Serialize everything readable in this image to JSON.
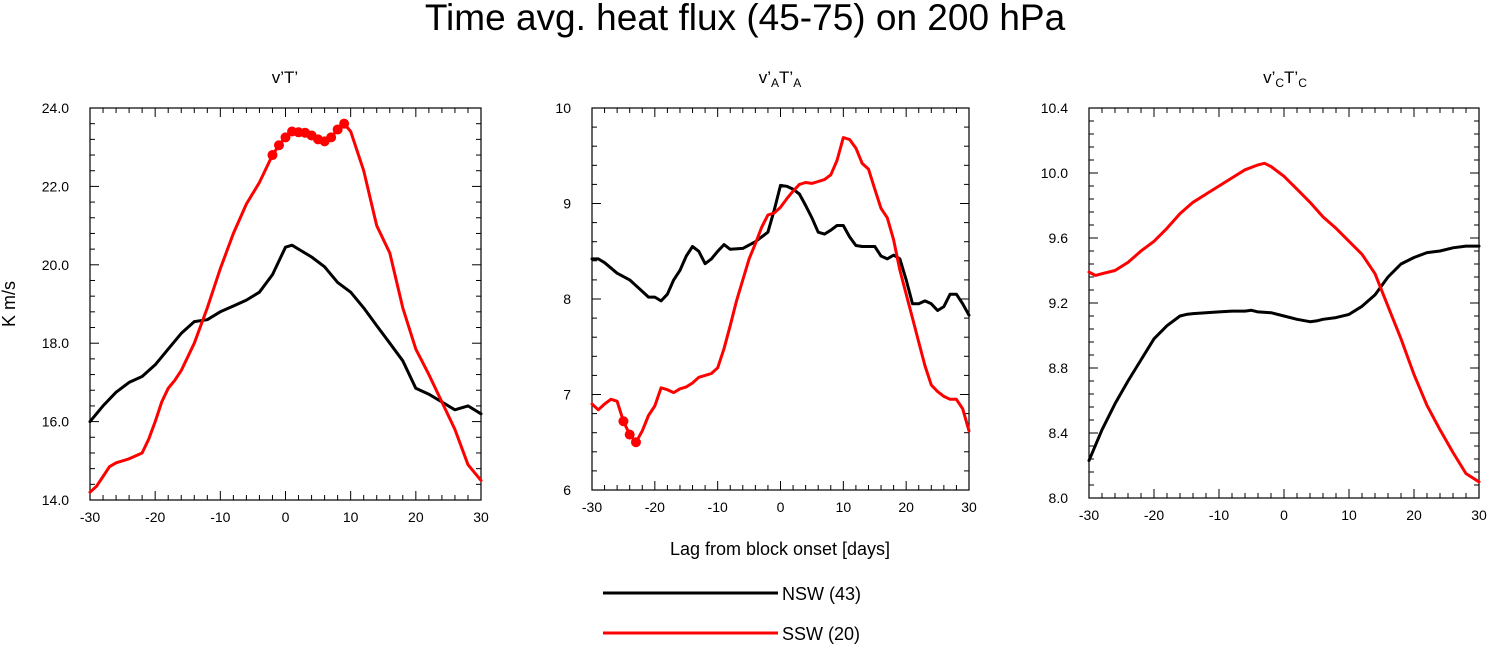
{
  "figure": {
    "title": "Time avg. heat flux (45-75) on 200 hPa",
    "ylabel": "K m/s",
    "xlabel": "Lag from block onset [days]"
  },
  "legend": [
    {
      "label": "NSW (43)",
      "color": "#000000"
    },
    {
      "label": "SSW (20)",
      "color": "#ff0000"
    }
  ],
  "panels": [
    {
      "title_main": "v’T’",
      "title_sub1": "",
      "title_mid": "",
      "title_sub2": ""
    },
    {
      "title_main": "v’",
      "title_sub1": "A",
      "title_mid": "T’",
      "title_sub2": "A"
    },
    {
      "title_main": "v’",
      "title_sub1": "C",
      "title_mid": "T’",
      "title_sub2": "C"
    }
  ],
  "chart_data": [
    {
      "type": "line",
      "title": "v’T’",
      "xlim": [
        -30,
        30
      ],
      "ylim": [
        14.0,
        24.0
      ],
      "xticks": [
        -30,
        -20,
        -10,
        0,
        10,
        20,
        30
      ],
      "yticks": [
        14.0,
        16.0,
        18.0,
        20.0,
        22.0,
        24.0
      ],
      "ytick_labels": [
        "14.0",
        "16.0",
        "18.0",
        "20.0",
        "22.0",
        "24.0"
      ],
      "series": [
        {
          "name": "NSW (43)",
          "color": "#000000",
          "x": [
            -30,
            -28,
            -26,
            -24,
            -22,
            -20,
            -18,
            -16,
            -14,
            -12,
            -10,
            -8,
            -6,
            -4,
            -2,
            0,
            1,
            2,
            4,
            6,
            8,
            10,
            12,
            14,
            16,
            18,
            20,
            22,
            24,
            26,
            28,
            30
          ],
          "y": [
            16.0,
            16.4,
            16.75,
            17.0,
            17.15,
            17.45,
            17.85,
            18.25,
            18.55,
            18.6,
            18.8,
            18.95,
            19.1,
            19.3,
            19.75,
            20.45,
            20.5,
            20.4,
            20.2,
            19.95,
            19.55,
            19.3,
            18.9,
            18.45,
            18.0,
            17.55,
            16.85,
            16.7,
            16.5,
            16.3,
            16.4,
            16.2
          ]
        },
        {
          "name": "SSW (20)",
          "color": "#ff0000",
          "x": [
            -30,
            -29,
            -28,
            -27,
            -26,
            -24,
            -22,
            -21,
            -20,
            -19,
            -18,
            -17,
            -16,
            -14,
            -12,
            -10,
            -8,
            -6,
            -4,
            -2,
            -1,
            0,
            1,
            2,
            3,
            4,
            5,
            6,
            7,
            8,
            9,
            10,
            12,
            14,
            16,
            18,
            20,
            22,
            24,
            26,
            28,
            30
          ],
          "y": [
            14.2,
            14.35,
            14.6,
            14.85,
            14.95,
            15.05,
            15.2,
            15.55,
            16.0,
            16.5,
            16.85,
            17.05,
            17.3,
            18.0,
            18.9,
            19.9,
            20.8,
            21.55,
            22.1,
            22.8,
            23.05,
            23.25,
            23.4,
            23.38,
            23.37,
            23.3,
            23.2,
            23.15,
            23.25,
            23.45,
            23.6,
            23.4,
            22.4,
            21.0,
            20.3,
            18.9,
            17.85,
            17.2,
            16.5,
            15.8,
            14.9,
            14.5
          ]
        }
      ],
      "significant_points": [
        {
          "x": -2,
          "y": 22.8
        },
        {
          "x": -1,
          "y": 23.05
        },
        {
          "x": 0,
          "y": 23.25
        },
        {
          "x": 1,
          "y": 23.4
        },
        {
          "x": 2,
          "y": 23.38
        },
        {
          "x": 3,
          "y": 23.37
        },
        {
          "x": 4,
          "y": 23.3
        },
        {
          "x": 5,
          "y": 23.2
        },
        {
          "x": 6,
          "y": 23.15
        },
        {
          "x": 7,
          "y": 23.25
        },
        {
          "x": 8,
          "y": 23.45
        },
        {
          "x": 9,
          "y": 23.6
        }
      ]
    },
    {
      "type": "line",
      "title": "v’AT’A",
      "xlim": [
        -30,
        30
      ],
      "ylim": [
        6,
        10
      ],
      "xticks": [
        -30,
        -20,
        -10,
        0,
        10,
        20,
        30
      ],
      "yticks": [
        6,
        7,
        8,
        9,
        10
      ],
      "ytick_labels": [
        "6",
        "7",
        "8",
        "9",
        "10"
      ],
      "series": [
        {
          "name": "NSW (43)",
          "color": "#000000",
          "x": [
            -30,
            -29,
            -28,
            -26,
            -24,
            -22,
            -21,
            -20,
            -19,
            -18,
            -17,
            -16,
            -15,
            -14,
            -13,
            -12,
            -11,
            -10,
            -9,
            -8,
            -6,
            -4,
            -2,
            -1,
            0,
            1,
            2,
            3,
            4,
            5,
            6,
            7,
            8,
            9,
            10,
            11,
            12,
            13,
            14,
            15,
            16,
            17,
            18,
            19,
            20,
            21,
            22,
            23,
            24,
            25,
            26,
            27,
            28,
            29,
            30
          ],
          "y": [
            8.42,
            8.42,
            8.38,
            8.27,
            8.2,
            8.08,
            8.02,
            8.02,
            7.98,
            8.05,
            8.2,
            8.3,
            8.45,
            8.55,
            8.5,
            8.37,
            8.42,
            8.5,
            8.57,
            8.52,
            8.53,
            8.6,
            8.7,
            8.93,
            9.19,
            9.18,
            9.15,
            9.1,
            8.98,
            8.85,
            8.7,
            8.68,
            8.72,
            8.77,
            8.77,
            8.65,
            8.56,
            8.55,
            8.55,
            8.55,
            8.45,
            8.42,
            8.46,
            8.42,
            8.2,
            7.95,
            7.95,
            7.98,
            7.95,
            7.88,
            7.92,
            8.05,
            8.05,
            7.95,
            7.83
          ]
        },
        {
          "name": "SSW (20)",
          "color": "#ff0000",
          "x": [
            -30,
            -29,
            -28,
            -27,
            -26,
            -25,
            -24,
            -23,
            -22,
            -21,
            -20,
            -19,
            -18,
            -17,
            -16,
            -15,
            -14,
            -13,
            -12,
            -11,
            -10,
            -9,
            -8,
            -7,
            -6,
            -5,
            -4,
            -3,
            -2,
            -1,
            0,
            1,
            2,
            3,
            4,
            5,
            6,
            7,
            8,
            9,
            10,
            11,
            12,
            13,
            14,
            15,
            16,
            17,
            18,
            19,
            20,
            21,
            22,
            23,
            24,
            25,
            26,
            27,
            28,
            29,
            30
          ],
          "y": [
            6.9,
            6.84,
            6.9,
            6.95,
            6.93,
            6.72,
            6.58,
            6.5,
            6.62,
            6.78,
            6.88,
            7.07,
            7.05,
            7.02,
            7.06,
            7.08,
            7.12,
            7.18,
            7.2,
            7.22,
            7.28,
            7.48,
            7.72,
            7.98,
            8.2,
            8.42,
            8.58,
            8.75,
            8.88,
            8.9,
            8.96,
            9.05,
            9.13,
            9.2,
            9.22,
            9.21,
            9.23,
            9.25,
            9.3,
            9.45,
            9.69,
            9.67,
            9.58,
            9.42,
            9.36,
            9.15,
            8.95,
            8.85,
            8.62,
            8.3,
            8.05,
            7.8,
            7.55,
            7.3,
            7.1,
            7.03,
            6.98,
            6.95,
            6.95,
            6.85,
            6.62
          ]
        }
      ],
      "significant_points": [
        {
          "x": -25,
          "y": 6.72
        },
        {
          "x": -24,
          "y": 6.58
        },
        {
          "x": -23,
          "y": 6.5
        }
      ]
    },
    {
      "type": "line",
      "title": "v’CT’C",
      "xlim": [
        -30,
        30
      ],
      "ylim": [
        8.0,
        10.4
      ],
      "xticks": [
        -30,
        -20,
        -10,
        0,
        10,
        20,
        30
      ],
      "yticks": [
        8.0,
        8.4,
        8.8,
        9.2,
        9.6,
        10.0,
        10.4
      ],
      "ytick_labels": [
        "8.0",
        "8.4",
        "8.8",
        "9.2",
        "9.6",
        "10.0",
        "10.4"
      ],
      "series": [
        {
          "name": "NSW (43)",
          "color": "#000000",
          "x": [
            -30,
            -28,
            -26,
            -24,
            -22,
            -20,
            -18,
            -16,
            -15,
            -14,
            -12,
            -10,
            -8,
            -6,
            -5,
            -4,
            -2,
            0,
            2,
            4,
            5,
            6,
            8,
            10,
            12,
            14,
            16,
            18,
            20,
            22,
            24,
            26,
            28,
            30
          ],
          "y": [
            8.23,
            8.42,
            8.58,
            8.72,
            8.85,
            8.98,
            9.06,
            9.12,
            9.13,
            9.135,
            9.14,
            9.145,
            9.15,
            9.15,
            9.155,
            9.145,
            9.14,
            9.12,
            9.1,
            9.085,
            9.09,
            9.1,
            9.11,
            9.13,
            9.18,
            9.25,
            9.36,
            9.44,
            9.48,
            9.51,
            9.52,
            9.54,
            9.55,
            9.55
          ]
        },
        {
          "name": "SSW (20)",
          "color": "#ff0000",
          "x": [
            -30,
            -29,
            -28,
            -26,
            -24,
            -22,
            -20,
            -18,
            -16,
            -14,
            -12,
            -10,
            -8,
            -6,
            -4,
            -3,
            -2,
            0,
            2,
            4,
            6,
            8,
            10,
            12,
            14,
            16,
            18,
            20,
            22,
            24,
            26,
            28,
            30
          ],
          "y": [
            9.39,
            9.37,
            9.38,
            9.4,
            9.45,
            9.52,
            9.58,
            9.66,
            9.75,
            9.82,
            9.87,
            9.92,
            9.97,
            10.02,
            10.05,
            10.06,
            10.04,
            9.98,
            9.9,
            9.82,
            9.73,
            9.66,
            9.58,
            9.5,
            9.38,
            9.18,
            8.98,
            8.76,
            8.57,
            8.42,
            8.28,
            8.15,
            8.1
          ]
        }
      ],
      "significant_points": []
    }
  ]
}
